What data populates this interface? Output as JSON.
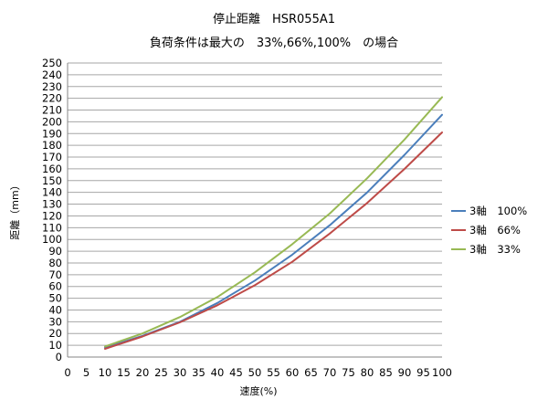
{
  "chart_data": {
    "type": "line",
    "title": "停止距離　HSR055A1",
    "subtitle": "負荷条件は最大の　33%,66%,100%　の場合",
    "xlabel": "速度(%)",
    "ylabel": "距離（mm）",
    "xlim": [
      0,
      100
    ],
    "ylim": [
      0,
      250
    ],
    "x_ticks": [
      0,
      5,
      10,
      15,
      20,
      25,
      30,
      35,
      40,
      45,
      50,
      55,
      60,
      65,
      70,
      75,
      80,
      85,
      90,
      95,
      100
    ],
    "y_ticks": [
      0,
      10,
      20,
      30,
      40,
      50,
      60,
      70,
      80,
      90,
      100,
      110,
      120,
      130,
      140,
      150,
      160,
      170,
      180,
      190,
      200,
      210,
      220,
      230,
      240,
      250
    ],
    "grid": "horizontal",
    "legend_position": "right",
    "x": [
      10,
      20,
      30,
      40,
      50,
      60,
      70,
      80,
      90,
      100
    ],
    "series": [
      {
        "name": "3軸　100%",
        "color": "#4a7ebb",
        "values": [
          8,
          18,
          30,
          46,
          65,
          87,
          112,
          140,
          172,
          206
        ]
      },
      {
        "name": "3軸　66%",
        "color": "#be4b48",
        "values": [
          7,
          17.5,
          29.5,
          44,
          61,
          81,
          105,
          131,
          160,
          191
        ]
      },
      {
        "name": "3軸　33%",
        "color": "#98b954",
        "values": [
          9,
          20,
          34,
          51,
          72,
          96,
          122,
          152,
          185,
          221
        ]
      }
    ]
  }
}
